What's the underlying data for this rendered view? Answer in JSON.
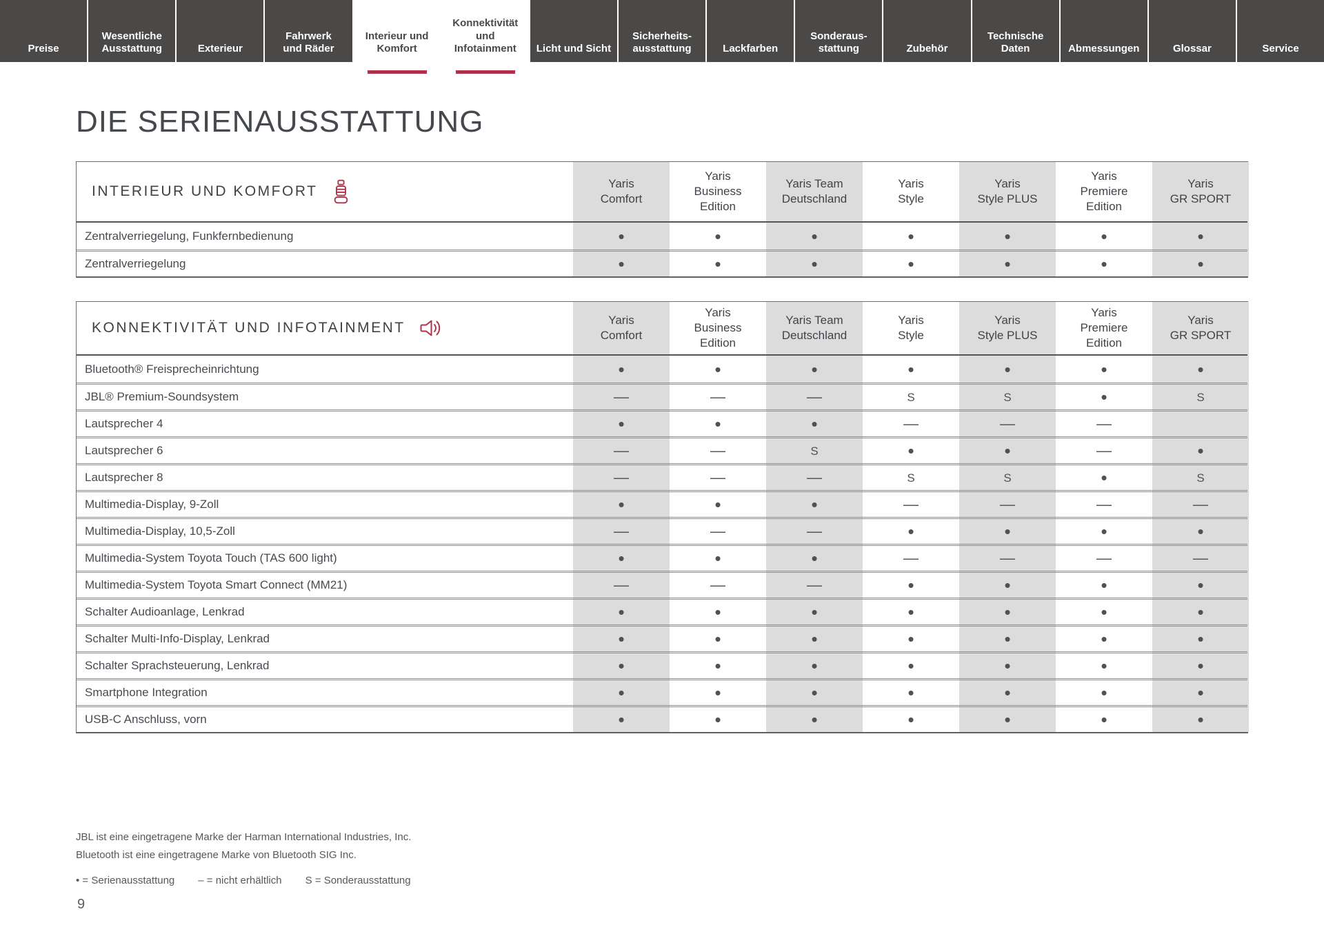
{
  "nav": {
    "tabs": [
      {
        "id": "preise",
        "label": "Preise",
        "active": false
      },
      {
        "id": "wesentliche-ausstattung",
        "label": "Wesentliche\nAusstattung",
        "active": false
      },
      {
        "id": "exterieur",
        "label": "Exterieur",
        "active": false
      },
      {
        "id": "fahrwerk-und-raeder",
        "label": "Fahrwerk\nund Räder",
        "active": false
      },
      {
        "id": "interieur-und-komfort",
        "label": "Interieur und\nKomfort",
        "active": true
      },
      {
        "id": "konnektivitaet-und-infotainment",
        "label": "Konnektivität\nund\nInfotainment",
        "active": true
      },
      {
        "id": "licht-und-sicht",
        "label": "Licht und Sicht",
        "active": false
      },
      {
        "id": "sicherheitsausstattung",
        "label": "Sicherheits-\nausstattung",
        "active": false
      },
      {
        "id": "lackfarben",
        "label": "Lackfarben",
        "active": false
      },
      {
        "id": "sonderausstattung",
        "label": "Sonderaus-\nstattung",
        "active": false
      },
      {
        "id": "zubehoer",
        "label": "Zubehör",
        "active": false
      },
      {
        "id": "technische-daten",
        "label": "Technische\nDaten",
        "active": false
      },
      {
        "id": "abmessungen",
        "label": "Abmessungen",
        "active": false
      },
      {
        "id": "glossar",
        "label": "Glossar",
        "active": false
      },
      {
        "id": "service",
        "label": "Service",
        "active": false
      }
    ]
  },
  "page": {
    "title": "DIE SERIENAUSSTATTUNG",
    "number": "9"
  },
  "columns": [
    "Yaris\nComfort",
    "Yaris\nBusiness\nEdition",
    "Yaris Team\nDeutschland",
    "Yaris\nStyle",
    "Yaris\nStyle PLUS",
    "Yaris\nPremiere\nEdition",
    "Yaris\nGR SPORT"
  ],
  "tables": [
    {
      "title": "INTERIEUR UND KOMFORT",
      "icon": "seat-icon",
      "rows": [
        {
          "label": "Zentralverriegelung, Funkfernbedienung",
          "cells": [
            "•",
            "•",
            "•",
            "•",
            "•",
            "•",
            "•"
          ]
        },
        {
          "label": "Zentralverriegelung",
          "cells": [
            "•",
            "•",
            "•",
            "•",
            "•",
            "•",
            "•"
          ]
        }
      ]
    },
    {
      "title": "KONNEKTIVITÄT UND INFOTAINMENT",
      "icon": "speaker-icon",
      "rows": [
        {
          "label": "Bluetooth® Freisprecheinrichtung",
          "cells": [
            "•",
            "•",
            "•",
            "•",
            "•",
            "•",
            "•"
          ]
        },
        {
          "label": "JBL® Premium-Soundsystem",
          "cells": [
            "—",
            "—",
            "—",
            "S",
            "S",
            "•",
            "S"
          ]
        },
        {
          "label": "Lautsprecher 4",
          "cells": [
            "•",
            "•",
            "•",
            "—",
            "—",
            "—",
            ""
          ]
        },
        {
          "label": "Lautsprecher 6",
          "cells": [
            "—",
            "—",
            "S",
            "•",
            "•",
            "—",
            "•"
          ]
        },
        {
          "label": "Lautsprecher 8",
          "cells": [
            "—",
            "—",
            "—",
            "S",
            "S",
            "•",
            "S"
          ]
        },
        {
          "label": "Multimedia-Display, 9-Zoll",
          "cells": [
            "•",
            "•",
            "•",
            "—",
            "—",
            "—",
            "—"
          ]
        },
        {
          "label": "Multimedia-Display, 10,5-Zoll",
          "cells": [
            "—",
            "—",
            "—",
            "•",
            "•",
            "•",
            "•"
          ]
        },
        {
          "label": "Multimedia-System Toyota Touch (TAS 600 light)",
          "cells": [
            "•",
            "•",
            "•",
            "—",
            "—",
            "—",
            "—"
          ]
        },
        {
          "label": "Multimedia-System Toyota Smart Connect (MM21)",
          "cells": [
            "—",
            "—",
            "—",
            "•",
            "•",
            "•",
            "•"
          ]
        },
        {
          "label": "Schalter Audioanlage, Lenkrad",
          "cells": [
            "•",
            "•",
            "•",
            "•",
            "•",
            "•",
            "•"
          ]
        },
        {
          "label": "Schalter Multi-Info-Display, Lenkrad",
          "cells": [
            "•",
            "•",
            "•",
            "•",
            "•",
            "•",
            "•"
          ]
        },
        {
          "label": "Schalter Sprachsteuerung, Lenkrad",
          "cells": [
            "•",
            "•",
            "•",
            "•",
            "•",
            "•",
            "•"
          ]
        },
        {
          "label": "Smartphone Integration",
          "cells": [
            "•",
            "•",
            "•",
            "•",
            "•",
            "•",
            "•"
          ]
        },
        {
          "label": "USB-C Anschluss, vorn",
          "cells": [
            "•",
            "•",
            "•",
            "•",
            "•",
            "•",
            "•"
          ]
        }
      ]
    }
  ],
  "footnotes": [
    "JBL ist eine eingetragene Marke der Harman International Industries, Inc.",
    "Bluetooth ist eine eingetragene Marke von Bluetooth SIG Inc."
  ],
  "legend": [
    "• = Serienausstattung",
    "– = nicht erhältlich",
    "S = Sonderausstattung"
  ],
  "colors": {
    "accent": "#b13049",
    "nav_bg": "#4b4948",
    "column_gray": "#dcdcdc"
  }
}
